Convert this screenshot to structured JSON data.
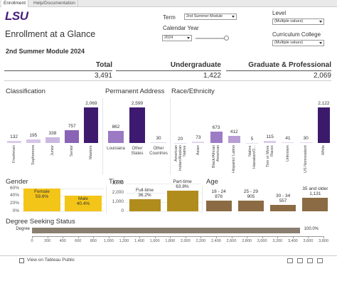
{
  "tabs": [
    "Enrollment",
    "Help/Documentation"
  ],
  "logo": "LSU",
  "title": "Enrollment at a Glance",
  "filters": {
    "term": {
      "label": "Term",
      "value": "2nd Summer Module"
    },
    "calendar_year": {
      "label": "Calendar Year",
      "value": "2024"
    },
    "level": {
      "label": "Level",
      "value": "(Multiple values)"
    },
    "curriculum_college": {
      "label": "Curriculum College",
      "value": "(Multiple values)"
    }
  },
  "subtitle": "2nd Summer Module 2024",
  "summary": {
    "headers": [
      "Total",
      "Undergraduate",
      "Graduate & Professional"
    ],
    "values": [
      "3,491",
      "1,422",
      "2,069"
    ]
  },
  "chart_data": [
    {
      "type": "bar",
      "title": "Classification",
      "categories": [
        "Freshman",
        "Sophomore",
        "Junior",
        "Senior",
        "Masters"
      ],
      "values": [
        132,
        195,
        338,
        757,
        2069
      ],
      "value_labels": [
        "132",
        "195",
        "338",
        "757",
        "2,069"
      ],
      "colors": [
        "#d9cbe9",
        "#d5c5e7",
        "#cbb8e0",
        "#8a63b6",
        "#3e1a6f"
      ]
    },
    {
      "type": "bar",
      "title": "Permanent Address",
      "categories": [
        "Louisiana",
        "Other States",
        "Other Countries"
      ],
      "values": [
        862,
        2599,
        30
      ],
      "value_labels": [
        "862",
        "2,599",
        "30"
      ],
      "colors": [
        "#9b79c3",
        "#3d1a70",
        "#e3d7ee"
      ]
    },
    {
      "type": "bar",
      "title": "Race/Ethnicity",
      "categories": [
        "American Indian/Alaskan Native",
        "Asian",
        "Black/African American",
        "Hispanic/ Latino",
        "Native Hawaiian/O...",
        "Two or More Races",
        "Unknown",
        "US Nonresident",
        "White"
      ],
      "values": [
        20,
        73,
        673,
        412,
        5,
        115,
        41,
        30,
        2122
      ],
      "value_labels": [
        "20",
        "73",
        "673",
        "412",
        "5",
        "115",
        "41",
        "30",
        "2,122"
      ],
      "colors": [
        "#e6dcef",
        "#e1d5ed",
        "#9d7cc6",
        "#b89ed5",
        "#e8dff0",
        "#d9cbea",
        "#e3d8ee",
        "#e4d9ee",
        "#3b1a6c"
      ]
    },
    {
      "type": "bar",
      "title": "Gender",
      "categories": [
        "Female",
        "Male"
      ],
      "values": [
        59.6,
        40.4
      ],
      "value_labels": [
        "59.6%",
        "40.4%"
      ],
      "color": "#f4c519",
      "ylim": [
        0,
        65
      ],
      "yticks": [
        {
          "value": 0,
          "label": "0%"
        },
        {
          "value": 20,
          "label": "20%"
        },
        {
          "value": 40,
          "label": "40%"
        },
        {
          "value": 60,
          "label": "60%"
        }
      ]
    },
    {
      "type": "bar",
      "title": "Time",
      "categories": [
        "Full-time",
        "Part-time"
      ],
      "values": [
        1264,
        2227
      ],
      "annotations": [
        "36.2%",
        "63.8%"
      ],
      "color": "#b08c1c",
      "ylim": [
        0,
        3200
      ],
      "yticks": [
        0,
        {
          "value": 1000,
          "label": "1,000"
        },
        {
          "value": 2000,
          "label": "2,000"
        },
        {
          "value": 3000,
          "label": "3,000"
        }
      ]
    },
    {
      "type": "bar",
      "title": "Age",
      "categories": [
        "18 - 24",
        "25 - 29",
        "30 - 34",
        "35 and older"
      ],
      "values": [
        878,
        905,
        557,
        1131
      ],
      "value_labels": [
        "878",
        "905",
        "557",
        "1,131"
      ],
      "color": "#8b6b43"
    },
    {
      "type": "barh",
      "title": "Degree Seeking Status",
      "categories": [
        "Degree"
      ],
      "values": [
        3491
      ],
      "annotations": [
        "100.0%"
      ],
      "color": "#8a7e70",
      "xlim": [
        0,
        3800
      ],
      "xticks": [
        0,
        200,
        400,
        600,
        800,
        {
          "value": 1000,
          "label": "1,000"
        },
        {
          "value": 1200,
          "label": "1,200"
        },
        {
          "value": 1400,
          "label": "1,400"
        },
        {
          "value": 1600,
          "label": "1,600"
        },
        {
          "value": 1800,
          "label": "1,800"
        },
        {
          "value": 2000,
          "label": "2,000"
        },
        {
          "value": 2200,
          "label": "2,200"
        },
        {
          "value": 2400,
          "label": "2,400"
        },
        {
          "value": 2600,
          "label": "2,600"
        },
        {
          "value": 2800,
          "label": "2,800"
        },
        {
          "value": 3000,
          "label": "3,000"
        },
        {
          "value": 3200,
          "label": "3,200"
        },
        {
          "value": 3400,
          "label": "3,400"
        },
        {
          "value": 3600,
          "label": "3,600"
        },
        {
          "value": 3800,
          "label": "3,800"
        }
      ]
    }
  ],
  "footer": "View on Tableau Public"
}
